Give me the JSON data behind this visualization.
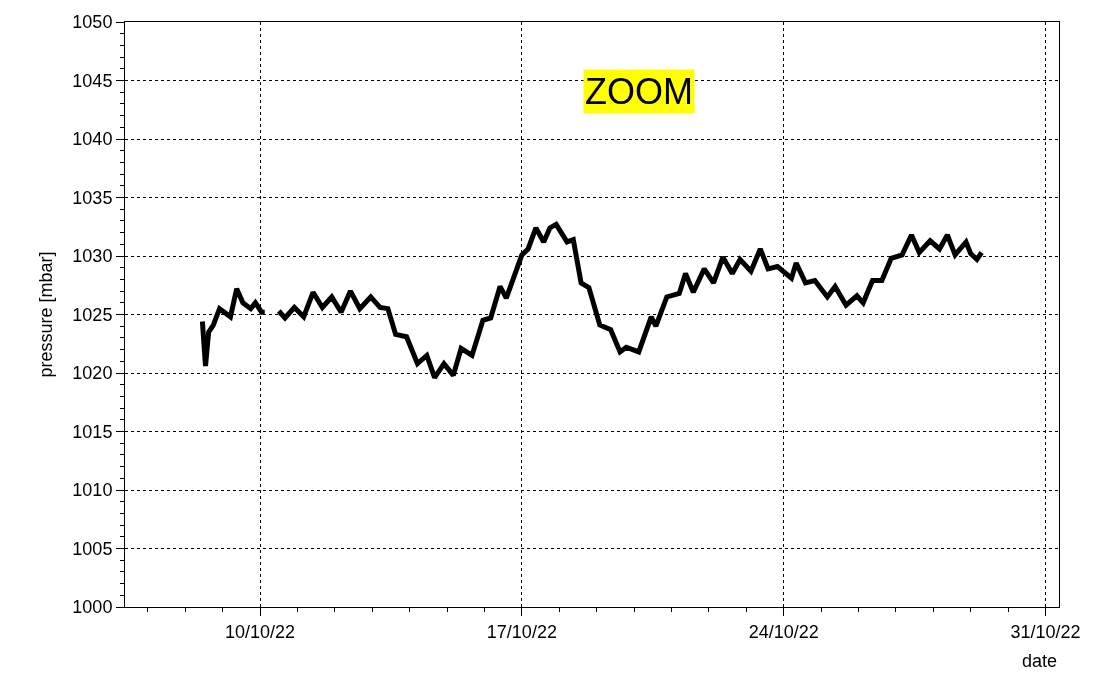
{
  "chart_data": {
    "type": "line",
    "xlabel": "date",
    "ylabel": "pressure [mbar]",
    "annotations": [
      "ZOOM"
    ],
    "x": [
      "--10-08T11:00",
      "--10-08T13:00",
      "--10-08T15:00",
      "--10-08T18:00",
      "--10-08T22:00",
      "--10-09T05:00",
      "--10-09T09:00",
      "--10-09T13:00",
      "--10-09T18:00",
      "--10-09T21:00",
      "--10-10T01:00",
      "--10-10T03:00",
      "--10-10T08:00",
      "--10-10T12:00",
      "--10-10T16:00",
      "--10-10T22:00",
      "--10-11T04:00",
      "--10-11T10:00",
      "--10-11T16:00",
      "--10-11T22:00",
      "--10-12T04:00",
      "--10-12T10:00",
      "--10-12T16:00",
      "--10-12T23:00",
      "--10-13T05:00",
      "--10-13T10:00",
      "--10-13T15:00",
      "--10-13T22:00",
      "--10-14T05:00",
      "--10-14T11:00",
      "--10-14T16:00",
      "--10-14T22:00",
      "--10-15T04:00",
      "--10-15T09:00",
      "--10-15T16:00",
      "--10-15T23:00",
      "--10-16T04:00",
      "--10-16T10:00",
      "--10-16T14:00",
      "--10-17T00:00",
      "--10-17T04:00",
      "--10-17T09:00",
      "--10-17T14:00",
      "--10-17T18:00",
      "--10-17T22:00",
      "--10-18T05:00",
      "--10-18T09:00",
      "--10-18T14:00",
      "--10-18T19:00",
      "--10-19T02:00",
      "--10-19T09:00",
      "--10-19T15:00",
      "--10-19T19:00",
      "--10-20T03:00",
      "--10-20T11:00",
      "--10-20T14:00",
      "--10-20T21:00",
      "--10-21T05:00",
      "--10-21T09:00",
      "--10-21T14:00",
      "--10-21T21:00",
      "--10-22T03:00",
      "--10-22T09:00",
      "--10-22T15:00",
      "--10-22T20:00",
      "--10-23T03:00",
      "--10-23T09:00",
      "--10-23T14:00",
      "--10-23T20:00",
      "--10-24T05:00",
      "--10-24T08:00",
      "--10-24T14:00",
      "--10-24T20:00",
      "--10-25T04:00",
      "--10-25T09:00",
      "--10-25T16:00",
      "--10-25T23:00",
      "--10-26T03:00",
      "--10-26T09:00",
      "--10-26T15:00",
      "--10-26T21:00",
      "--10-27T04:00",
      "--10-27T10:00",
      "--10-27T15:00",
      "--10-27T22:00",
      "--10-28T04:00",
      "--10-28T09:00",
      "--10-28T14:00",
      "--10-28T21:00",
      "--10-29T00:00",
      "--10-29T04:00",
      "--10-29T07:00"
    ],
    "series": [
      {
        "color": "#000000",
        "values": [
          1024.4,
          1020.6,
          1023.5,
          1024.1,
          1025.5,
          1024.8,
          1027.2,
          1026.0,
          1025.5,
          1026.0,
          1025.2,
          1025.2,
          null,
          1025.3,
          1024.7,
          1025.6,
          1024.8,
          1026.9,
          1025.6,
          1026.5,
          1025.2,
          1027.0,
          1025.5,
          1026.5,
          1025.6,
          1025.5,
          1023.3,
          1023.1,
          1020.8,
          1021.5,
          1019.6,
          1020.8,
          1019.8,
          1022.1,
          1021.5,
          1024.5,
          1024.7,
          1027.4,
          1026.4,
          1030.1,
          1030.6,
          1032.4,
          1031.2,
          1032.4,
          1032.7,
          1031.2,
          1031.4,
          1027.7,
          1027.3,
          1024.1,
          1023.7,
          1021.8,
          1022.2,
          1021.8,
          1024.8,
          1024.0,
          1026.5,
          1026.8,
          1028.5,
          1026.9,
          1028.9,
          1027.7,
          1029.9,
          1028.5,
          1029.7,
          1028.7,
          1030.6,
          1028.9,
          1029.1,
          1028.1,
          1029.4,
          1027.7,
          1027.9,
          1026.5,
          1027.4,
          1025.8,
          1026.6,
          1026.0,
          1027.9,
          1027.9,
          1029.8,
          1030.1,
          1031.8,
          1030.3,
          1031.3,
          1030.6,
          1031.8,
          1030.1,
          1031.2,
          1030.2,
          1029.7,
          1030.3
        ]
      }
    ],
    "xlim": [
      "--10-06T09:20",
      "--10-31T08:40"
    ],
    "xticks": [
      {
        "value": "--10-10",
        "label": "10/10/22"
      },
      {
        "value": "--10-17",
        "label": "17/10/22"
      },
      {
        "value": "--10-24",
        "label": "24/10/22"
      },
      {
        "value": "--10-31",
        "label": "31/10/22"
      }
    ],
    "ylim": [
      1000,
      1050
    ],
    "yticks": [
      1000,
      1005,
      1010,
      1015,
      1020,
      1025,
      1030,
      1035,
      1040,
      1045,
      1050
    ],
    "grid": true,
    "marker": "none",
    "line_style": "solid"
  }
}
